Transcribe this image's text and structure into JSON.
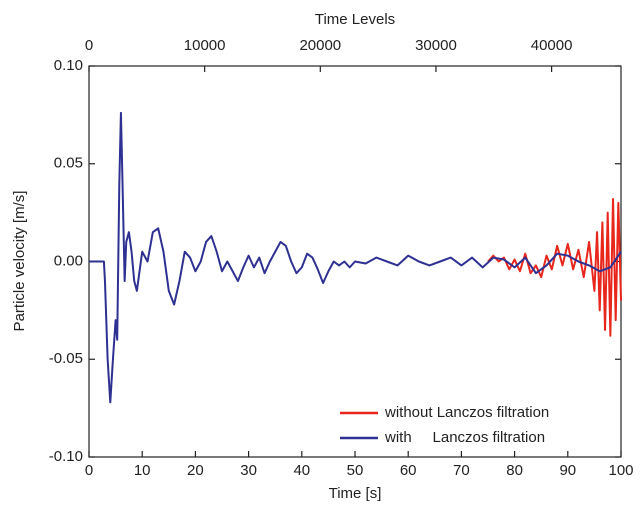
{
  "chart_data": {
    "type": "line",
    "xlabel": "Time [s]",
    "ylabel": "Particle velocity [m/s]",
    "x2label": "Time Levels",
    "xlim": [
      0,
      100
    ],
    "xticks": [
      0,
      10,
      20,
      30,
      40,
      50,
      60,
      70,
      80,
      90,
      100
    ],
    "ylim": [
      -0.1,
      0.1
    ],
    "yticks": [
      {
        "value": -0.1,
        "label": "-0.10"
      },
      {
        "value": -0.05,
        "label": "-0.05"
      },
      {
        "value": 0,
        "label": "0.00"
      },
      {
        "value": 0.05,
        "label": "0.05"
      },
      {
        "value": 0.1,
        "label": "0.10"
      }
    ],
    "x2lim": [
      0,
      46000
    ],
    "x2ticks": [
      0,
      10000,
      20000,
      30000,
      40000
    ],
    "legend": "lower right",
    "series": [
      {
        "name": "without Lanczos filtration",
        "color": "#e8261c",
        "x": [
          75,
          76,
          77,
          78,
          79,
          80,
          81,
          82,
          83,
          84,
          85,
          86,
          87,
          88,
          89,
          90,
          91,
          92,
          93,
          94,
          95,
          95.5,
          96,
          96.5,
          97,
          97.5,
          98,
          98.5,
          99,
          99.5,
          100
        ],
        "values": [
          0.0,
          0.003,
          0.0,
          0.002,
          -0.004,
          0.001,
          -0.005,
          0.004,
          -0.006,
          -0.002,
          -0.008,
          0.003,
          -0.004,
          0.008,
          -0.002,
          0.009,
          -0.004,
          0.006,
          -0.008,
          0.01,
          -0.015,
          0.015,
          -0.025,
          0.02,
          -0.035,
          0.025,
          -0.038,
          0.032,
          -0.03,
          0.03,
          -0.02
        ]
      },
      {
        "name": "with     Lanczos filtration",
        "color": "#2e3192",
        "x": [
          0,
          2,
          2.8,
          3,
          3.5,
          4,
          4.5,
          5,
          5.3,
          5.7,
          6,
          6.3,
          6.7,
          7,
          7.5,
          8,
          8.5,
          9,
          9.5,
          10,
          11,
          12,
          13,
          14,
          15,
          16,
          17,
          18,
          19,
          20,
          21,
          22,
          23,
          24,
          25,
          26,
          27,
          28,
          29,
          30,
          31,
          32,
          33,
          34,
          35,
          36,
          37,
          38,
          39,
          40,
          41,
          42,
          43,
          44,
          45,
          46,
          47,
          48,
          49,
          50,
          52,
          54,
          56,
          58,
          60,
          62,
          64,
          66,
          68,
          70,
          72,
          74,
          76,
          78,
          80,
          82,
          84,
          86,
          88,
          90,
          92,
          94,
          96,
          98,
          100
        ],
        "values": [
          0,
          0,
          0,
          -0.01,
          -0.05,
          -0.072,
          -0.05,
          -0.03,
          -0.04,
          0.04,
          0.076,
          0.04,
          -0.01,
          0.01,
          0.015,
          0.005,
          -0.01,
          -0.015,
          -0.005,
          0.005,
          0.0,
          0.015,
          0.017,
          0.005,
          -0.015,
          -0.022,
          -0.01,
          0.005,
          0.002,
          -0.005,
          0.0,
          0.01,
          0.013,
          0.005,
          -0.005,
          0.0,
          -0.005,
          -0.01,
          -0.003,
          0.003,
          -0.003,
          0.002,
          -0.006,
          0.0,
          0.005,
          0.01,
          0.008,
          0.0,
          -0.006,
          -0.003,
          0.004,
          0.002,
          -0.004,
          -0.011,
          -0.005,
          0.0,
          -0.002,
          0.0,
          -0.003,
          0.0,
          -0.001,
          0.002,
          0.0,
          -0.002,
          0.003,
          0.0,
          -0.002,
          0.0,
          0.002,
          -0.002,
          0.002,
          -0.003,
          0.002,
          0.001,
          -0.003,
          0.002,
          -0.006,
          -0.002,
          0.004,
          0.003,
          0.0,
          -0.002,
          -0.005,
          -0.003,
          0.005
        ]
      }
    ]
  }
}
